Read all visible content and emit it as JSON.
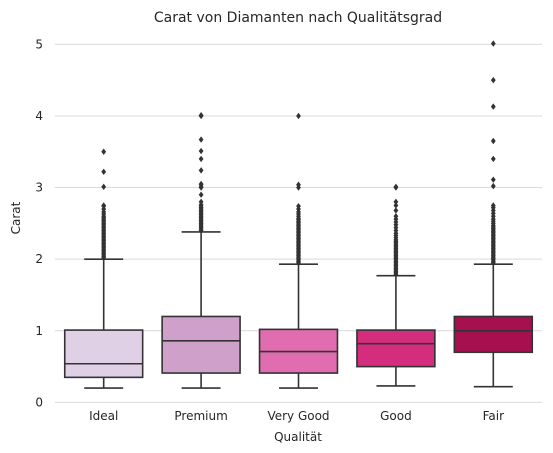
{
  "chart_data": {
    "type": "boxplot",
    "title": "Carat von Diamanten nach Qualitätsgrad",
    "xlabel": "Qualität",
    "ylabel": "Carat",
    "ylim": [
      -0.05,
      5.2
    ],
    "yticks": [
      0,
      1,
      2,
      3,
      4,
      5
    ],
    "grid": true,
    "categories": [
      "Ideal",
      "Premium",
      "Very Good",
      "Good",
      "Fair"
    ],
    "colors": [
      "#e0d0e6",
      "#cfa0c9",
      "#df6db0",
      "#d42d7e",
      "#a7104f"
    ],
    "boxes": [
      {
        "category": "Ideal",
        "min": 0.2,
        "q1": 0.35,
        "median": 0.54,
        "q3": 1.01,
        "max": 2.0,
        "outliers": [
          2.02,
          2.04,
          2.06,
          2.08,
          2.1,
          2.12,
          2.14,
          2.16,
          2.18,
          2.2,
          2.22,
          2.24,
          2.26,
          2.28,
          2.3,
          2.32,
          2.34,
          2.36,
          2.38,
          2.4,
          2.42,
          2.44,
          2.46,
          2.48,
          2.5,
          2.52,
          2.54,
          2.56,
          2.58,
          2.6,
          2.63,
          2.66,
          2.7,
          2.74,
          2.75,
          3.01,
          3.22,
          3.5
        ]
      },
      {
        "category": "Premium",
        "min": 0.2,
        "q1": 0.41,
        "median": 0.86,
        "q3": 1.2,
        "max": 2.38,
        "outliers": [
          2.4,
          2.42,
          2.44,
          2.46,
          2.48,
          2.5,
          2.52,
          2.54,
          2.56,
          2.58,
          2.6,
          2.62,
          2.64,
          2.66,
          2.68,
          2.7,
          2.72,
          2.74,
          2.76,
          2.8,
          2.9,
          3.0,
          3.01,
          3.04,
          3.05,
          3.24,
          3.4,
          3.51,
          3.67,
          4.0,
          4.01
        ]
      },
      {
        "category": "Very Good",
        "min": 0.2,
        "q1": 0.41,
        "median": 0.71,
        "q3": 1.02,
        "max": 1.93,
        "outliers": [
          1.95,
          1.97,
          1.99,
          2.01,
          2.03,
          2.05,
          2.07,
          2.09,
          2.11,
          2.13,
          2.15,
          2.17,
          2.19,
          2.21,
          2.23,
          2.25,
          2.27,
          2.29,
          2.31,
          2.33,
          2.35,
          2.37,
          2.39,
          2.41,
          2.43,
          2.45,
          2.47,
          2.49,
          2.51,
          2.53,
          2.55,
          2.57,
          2.6,
          2.63,
          2.66,
          2.7,
          2.74,
          3.0,
          3.04,
          4.0
        ]
      },
      {
        "category": "Good",
        "min": 0.23,
        "q1": 0.5,
        "median": 0.82,
        "q3": 1.01,
        "max": 1.77,
        "outliers": [
          1.79,
          1.81,
          1.83,
          1.85,
          1.87,
          1.89,
          1.91,
          1.93,
          1.95,
          1.97,
          1.99,
          2.01,
          2.03,
          2.05,
          2.07,
          2.09,
          2.11,
          2.13,
          2.15,
          2.17,
          2.19,
          2.21,
          2.23,
          2.25,
          2.27,
          2.3,
          2.33,
          2.36,
          2.4,
          2.44,
          2.48,
          2.52,
          2.56,
          2.6,
          2.68,
          2.75,
          2.8,
          3.0,
          3.01
        ]
      },
      {
        "category": "Fair",
        "min": 0.22,
        "q1": 0.7,
        "median": 1.0,
        "q3": 1.2,
        "max": 1.93,
        "outliers": [
          1.95,
          1.97,
          1.99,
          2.01,
          2.03,
          2.05,
          2.07,
          2.09,
          2.11,
          2.13,
          2.15,
          2.17,
          2.19,
          2.21,
          2.23,
          2.25,
          2.27,
          2.29,
          2.31,
          2.33,
          2.35,
          2.37,
          2.39,
          2.41,
          2.43,
          2.45,
          2.47,
          2.5,
          2.53,
          2.56,
          2.6,
          2.64,
          2.68,
          2.72,
          2.75,
          3.02,
          3.11,
          3.4,
          3.65,
          4.13,
          4.5,
          5.01
        ]
      }
    ]
  }
}
